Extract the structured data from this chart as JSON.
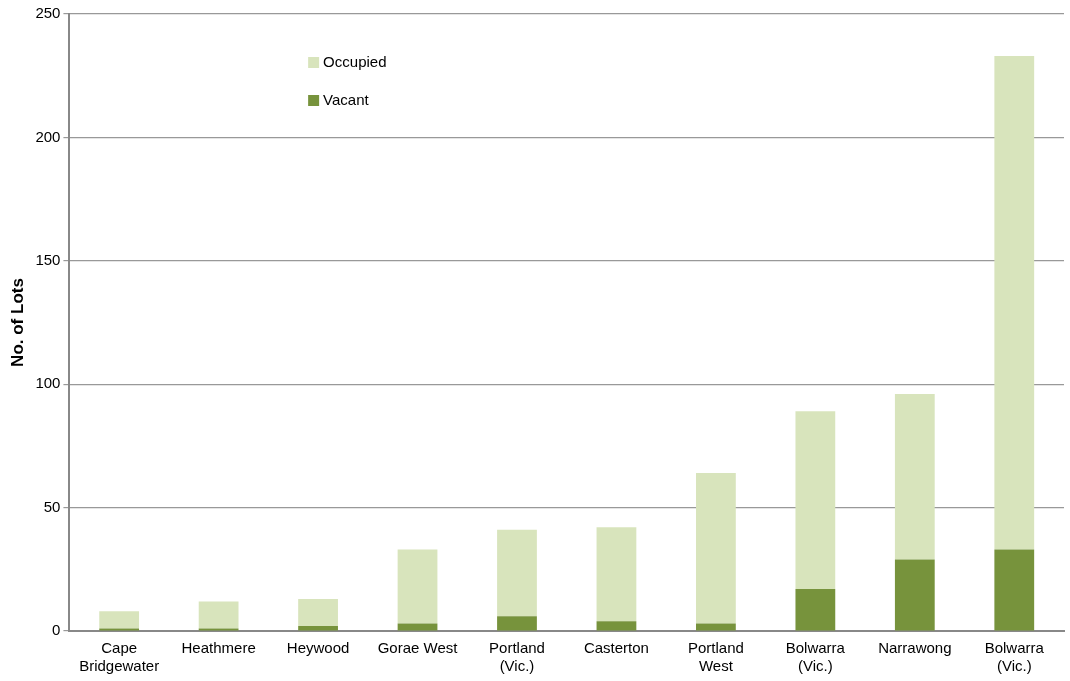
{
  "chart_data": {
    "type": "bar",
    "stacked": true,
    "ylabel": "No. of Lots",
    "categories": [
      "Cape Bridgewater",
      "Heathmere",
      "Heywood",
      "Gorae West",
      "Portland (Vic.)",
      "Casterton",
      "Portland West",
      "Bolwarra (Vic.)",
      "Narrawong",
      "Bolwarra (Vic.)"
    ],
    "series": [
      {
        "name": "Vacant",
        "color": "#77933c",
        "values": [
          1,
          1,
          2,
          3,
          6,
          4,
          3,
          17,
          29,
          33
        ]
      },
      {
        "name": "Occupied",
        "color": "#d8e4bc",
        "values": [
          7,
          11,
          11,
          30,
          35,
          38,
          61,
          72,
          67,
          200
        ]
      }
    ],
    "ylim": [
      0,
      250
    ],
    "yticks": [
      0,
      50,
      100,
      150,
      200,
      250
    ],
    "grid": "y",
    "legend": "top left"
  }
}
